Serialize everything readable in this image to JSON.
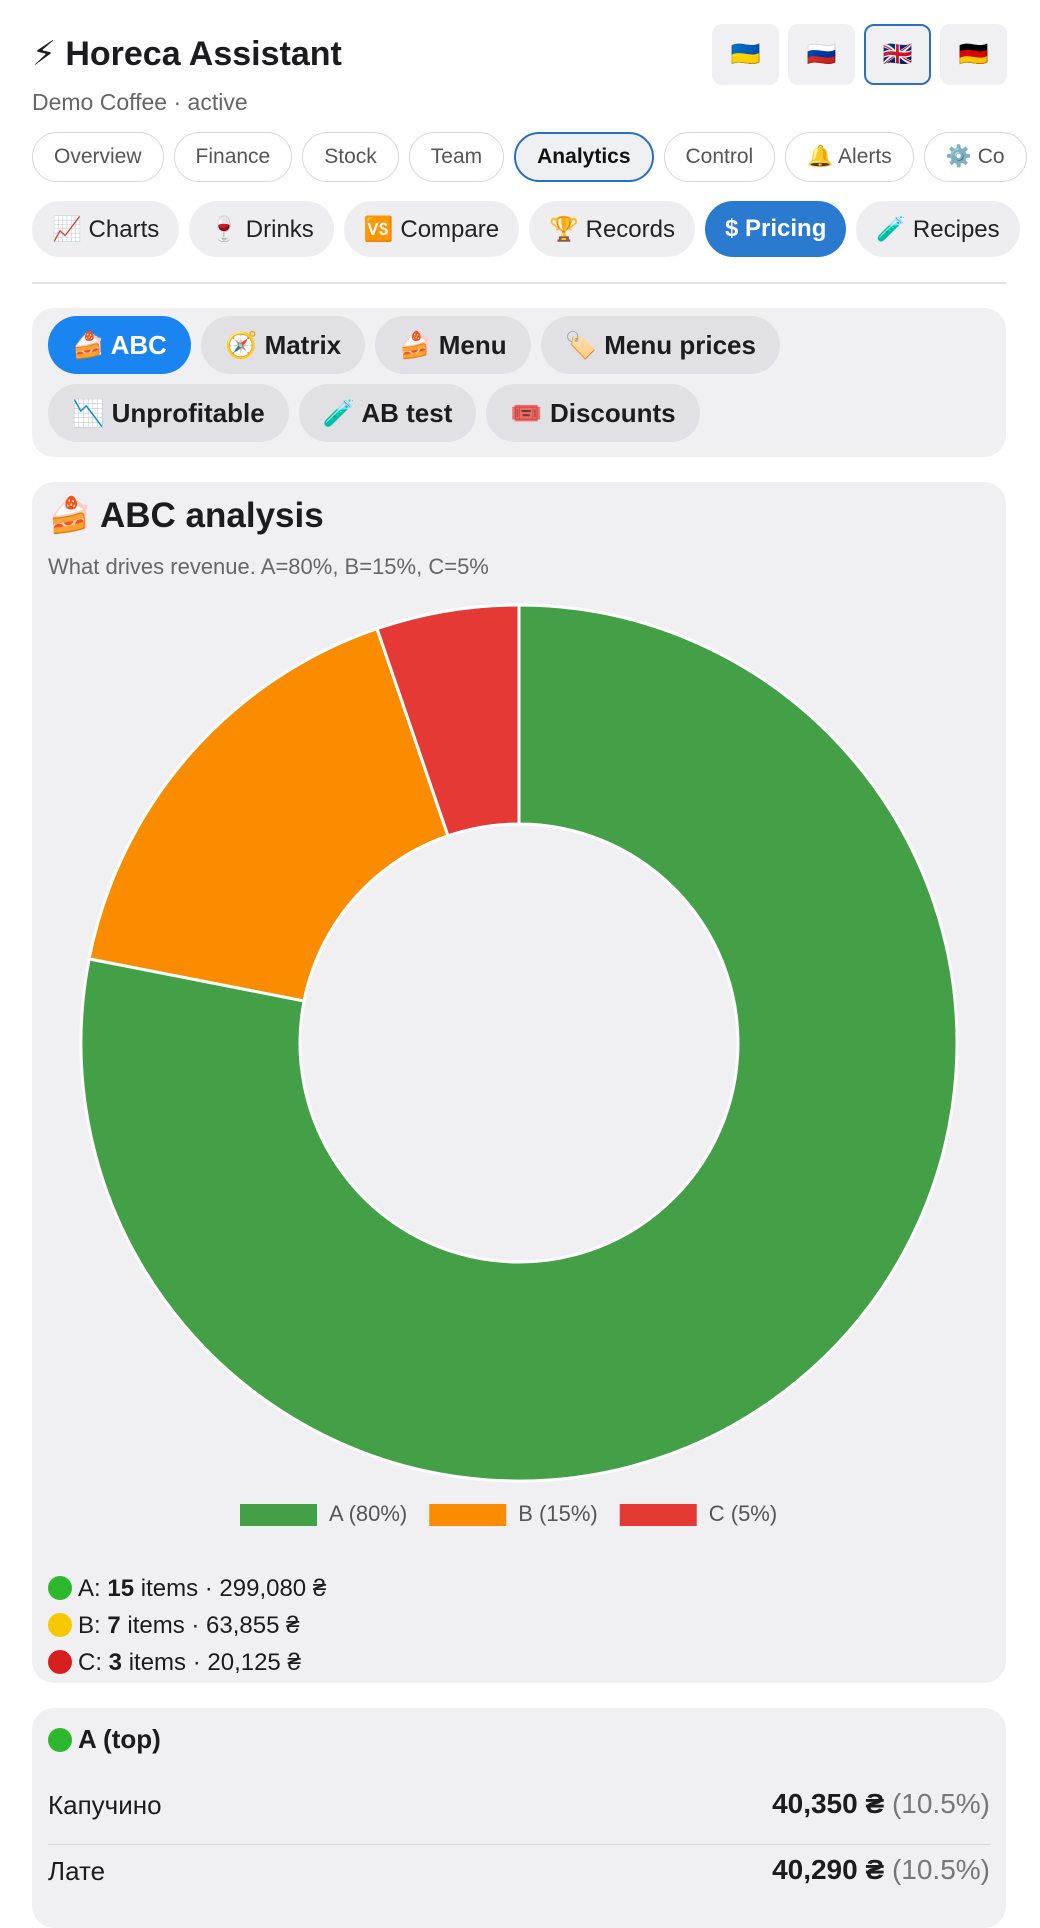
{
  "header": {
    "title": "⚡ Horeca Assistant",
    "subtitle": "Demo Coffee · active",
    "flags": [
      "🇺🇦",
      "🇷🇺",
      "🇬🇧",
      "🇩🇪"
    ],
    "active_flag": 2
  },
  "tabs": {
    "items": [
      "Overview",
      "Finance",
      "Stock",
      "Team",
      "Analytics",
      "Control",
      "🔔 Alerts",
      "⚙️ Co"
    ],
    "active": 4
  },
  "subtabs": {
    "items": [
      "📈 Charts",
      "🍷 Drinks",
      "🆚 Compare",
      "🏆 Records",
      "$ Pricing",
      "🧪 Recipes"
    ],
    "active": 4
  },
  "pricing_tabs": {
    "items": [
      "🍰 ABC",
      "🧭 Matrix",
      "🍰 Menu",
      "🏷️ Menu prices",
      "📉 Unprofitable",
      "🧪 AB test",
      "🎟️ Discounts"
    ],
    "active": 0
  },
  "chart_data": {
    "type": "doughnut",
    "title": "🍰 ABC analysis",
    "subtitle": "What drives revenue. A=80%, B=15%, C=5%",
    "categories": [
      "A (80%)",
      "B (15%)",
      "C (5%)"
    ],
    "values": [
      299080,
      63855,
      20125
    ],
    "colors": [
      "#43a047",
      "#fb8c00",
      "#e53935"
    ]
  },
  "summary": [
    {
      "label": "A:",
      "count": "15",
      "text": "items · 299,080 ₴",
      "color": "#2db82d"
    },
    {
      "label": "B:",
      "count": "7",
      "text": "items · 63,855 ₴",
      "color": "#f5c800"
    },
    {
      "label": "C:",
      "count": "3",
      "text": "items · 20,125 ₴",
      "color": "#d81f1f"
    }
  ],
  "list": {
    "title": "A (top)",
    "rows": [
      {
        "name": "Капучино",
        "amount": "40,350 ₴",
        "share": "(10.5%)"
      },
      {
        "name": "Лате",
        "amount": "40,290 ₴",
        "share": "(10.5%)"
      }
    ]
  }
}
